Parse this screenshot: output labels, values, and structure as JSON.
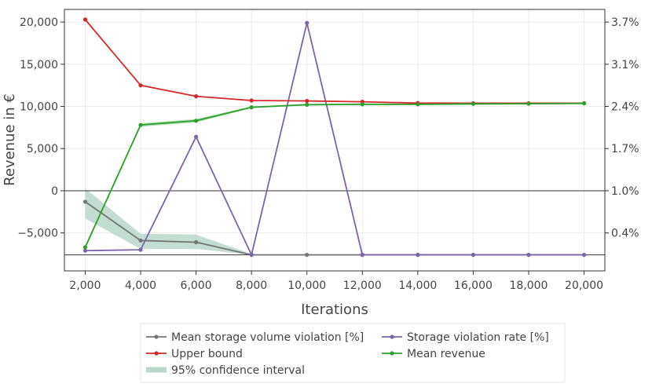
{
  "chart_data": {
    "type": "line",
    "xlabel": "Iterations",
    "ylabel": "Revenue in €",
    "xlim": [
      1250,
      20750
    ],
    "ylim": [
      -9500,
      21500
    ],
    "x_ticks": [
      2000,
      4000,
      6000,
      8000,
      10000,
      12000,
      14000,
      16000,
      18000,
      20000
    ],
    "x_tick_labels": [
      "2,000",
      "4,000",
      "6,000",
      "8,000",
      "10,000",
      "12,000",
      "14,000",
      "16,000",
      "18,000",
      "20,000"
    ],
    "y_ticks": [
      -5000,
      0,
      5000,
      10000,
      15000,
      20000
    ],
    "y_tick_labels": [
      "−5,000",
      "0",
      "5,000",
      "10,000",
      "15,000",
      "20,000"
    ],
    "y2_tick_labels": [
      "0.4%",
      "1.0%",
      "1.7%",
      "2.4%",
      "3.1%",
      "3.7%"
    ],
    "x": [
      2000,
      4000,
      6000,
      8000,
      10000,
      12000,
      14000,
      16000,
      18000,
      20000
    ],
    "series": [
      {
        "name": "Mean storage volume violation [%]",
        "color": "#757575",
        "axis": "right",
        "values": [
          -1300,
          -5900,
          -6100,
          -7600,
          -7600,
          -7600,
          -7600,
          -7600,
          -7600,
          -7600
        ],
        "band": {
          "lower": [
            -3300,
            -6900,
            -6900,
            -7600,
            -7600,
            -7600,
            -7600,
            -7600,
            -7600,
            -7600
          ],
          "upper": [
            300,
            -5100,
            -5200,
            -7500,
            -7500,
            -7500,
            -7500,
            -7500,
            -7500,
            -7500
          ]
        }
      },
      {
        "name": "Storage violation rate [%]",
        "color": "#7b64a8",
        "axis": "right",
        "values": [
          -7100,
          -7000,
          6400,
          -7600,
          19900,
          -7600,
          -7600,
          -7600,
          -7600,
          -7600
        ]
      },
      {
        "name": "Upper bound",
        "color": "#d62728",
        "axis": "left",
        "values": [
          20300,
          12500,
          11200,
          10700,
          10650,
          10550,
          10400,
          10380,
          10380,
          10380
        ]
      },
      {
        "name": "Mean revenue",
        "color": "#2ca02c",
        "axis": "left",
        "values": [
          -6700,
          7800,
          8300,
          9900,
          10200,
          10250,
          10250,
          10300,
          10320,
          10360
        ],
        "band": {
          "lower": [
            -6900,
            7600,
            8100,
            9800,
            10100,
            10150,
            10150,
            10200,
            10250,
            10300
          ],
          "upper": [
            -6500,
            8000,
            8500,
            10000,
            10300,
            10350,
            10350,
            10400,
            10400,
            10420
          ]
        }
      }
    ],
    "hlines": [
      0,
      -7600
    ],
    "grid": true,
    "legend": {
      "placement": "bottom",
      "entries": [
        {
          "label": "Mean storage volume violation [%]",
          "color": "#757575",
          "kind": "line"
        },
        {
          "label": "Storage violation rate [%]",
          "color": "#7b64a8",
          "kind": "line"
        },
        {
          "label": "Upper bound",
          "color": "#d62728",
          "kind": "line"
        },
        {
          "label": "Mean revenue",
          "color": "#2ca02c",
          "kind": "line"
        },
        {
          "label": "95% confidence interval",
          "color": "#b9d7ca",
          "kind": "band"
        }
      ]
    }
  }
}
